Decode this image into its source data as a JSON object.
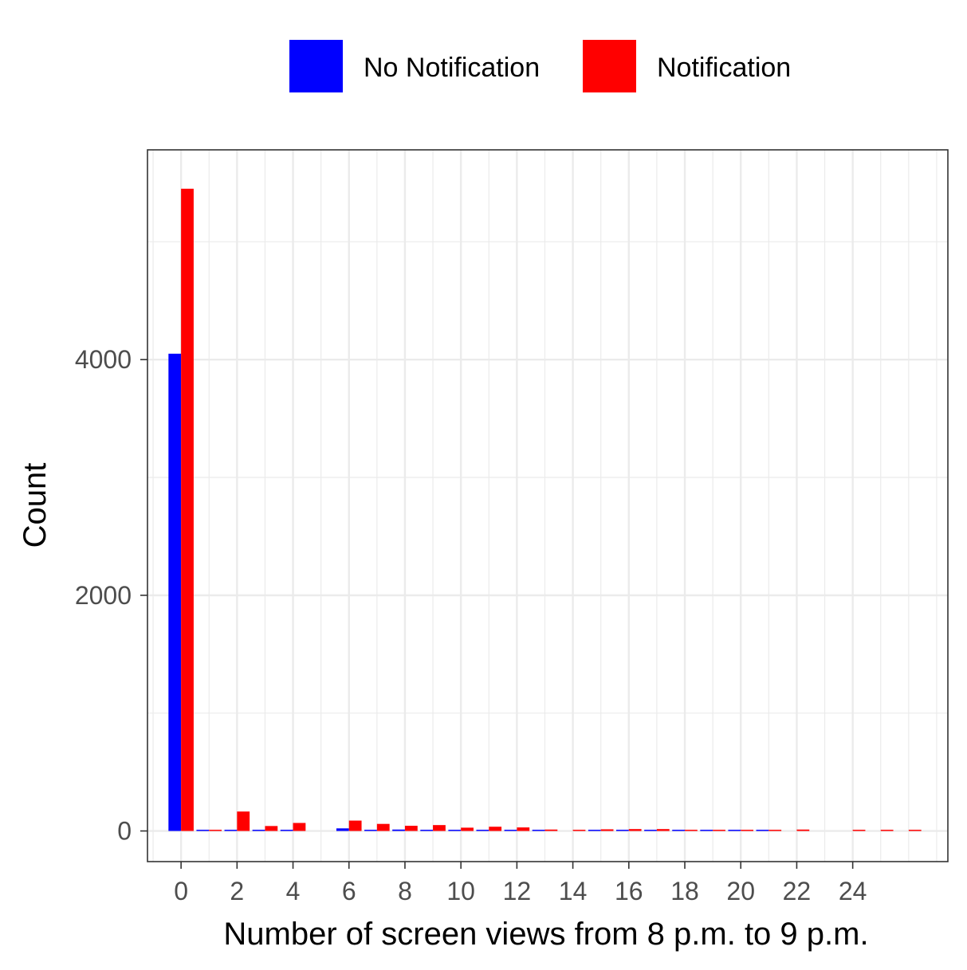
{
  "chart_data": {
    "type": "bar",
    "xlabel": "Number of screen views from 8 p.m. to 9 p.m.",
    "ylabel": "Count",
    "xlim": [
      -1.2,
      27.4
    ],
    "ylim": [
      -260,
      5780
    ],
    "x_ticks": [
      0,
      2,
      4,
      6,
      8,
      10,
      12,
      14,
      16,
      18,
      20,
      22,
      24
    ],
    "y_ticks": [
      0,
      2000,
      4000
    ],
    "grid": true,
    "legend_position": "top",
    "series": [
      {
        "name": "No Notification",
        "color": "#0000ff",
        "points": [
          {
            "x": 0,
            "y": 4050
          },
          {
            "x": 1,
            "y": 5
          },
          {
            "x": 2,
            "y": 10
          },
          {
            "x": 3,
            "y": 8
          },
          {
            "x": 4,
            "y": 6
          },
          {
            "x": 6,
            "y": 22
          },
          {
            "x": 7,
            "y": 8
          },
          {
            "x": 8,
            "y": 12
          },
          {
            "x": 9,
            "y": 5
          },
          {
            "x": 10,
            "y": 6
          },
          {
            "x": 11,
            "y": 8
          },
          {
            "x": 12,
            "y": 6
          },
          {
            "x": 13,
            "y": 4
          },
          {
            "x": 15,
            "y": 3
          },
          {
            "x": 16,
            "y": 3
          },
          {
            "x": 17,
            "y": 4
          },
          {
            "x": 18,
            "y": 3
          },
          {
            "x": 19,
            "y": 3
          },
          {
            "x": 20,
            "y": 3
          },
          {
            "x": 21,
            "y": 2
          }
        ]
      },
      {
        "name": "Notification",
        "color": "#ff0000",
        "points": [
          {
            "x": 0,
            "y": 5450
          },
          {
            "x": 1,
            "y": 8
          },
          {
            "x": 2,
            "y": 165
          },
          {
            "x": 3,
            "y": 42
          },
          {
            "x": 4,
            "y": 68
          },
          {
            "x": 6,
            "y": 88
          },
          {
            "x": 7,
            "y": 60
          },
          {
            "x": 8,
            "y": 44
          },
          {
            "x": 9,
            "y": 50
          },
          {
            "x": 10,
            "y": 28
          },
          {
            "x": 11,
            "y": 36
          },
          {
            "x": 12,
            "y": 30
          },
          {
            "x": 13,
            "y": 12
          },
          {
            "x": 14,
            "y": 10
          },
          {
            "x": 15,
            "y": 14
          },
          {
            "x": 16,
            "y": 16
          },
          {
            "x": 17,
            "y": 16
          },
          {
            "x": 18,
            "y": 10
          },
          {
            "x": 19,
            "y": 8
          },
          {
            "x": 20,
            "y": 5
          },
          {
            "x": 21,
            "y": 8
          },
          {
            "x": 22,
            "y": 12
          },
          {
            "x": 24,
            "y": 4
          },
          {
            "x": 25,
            "y": 3
          },
          {
            "x": 26,
            "y": 3
          }
        ]
      }
    ]
  }
}
